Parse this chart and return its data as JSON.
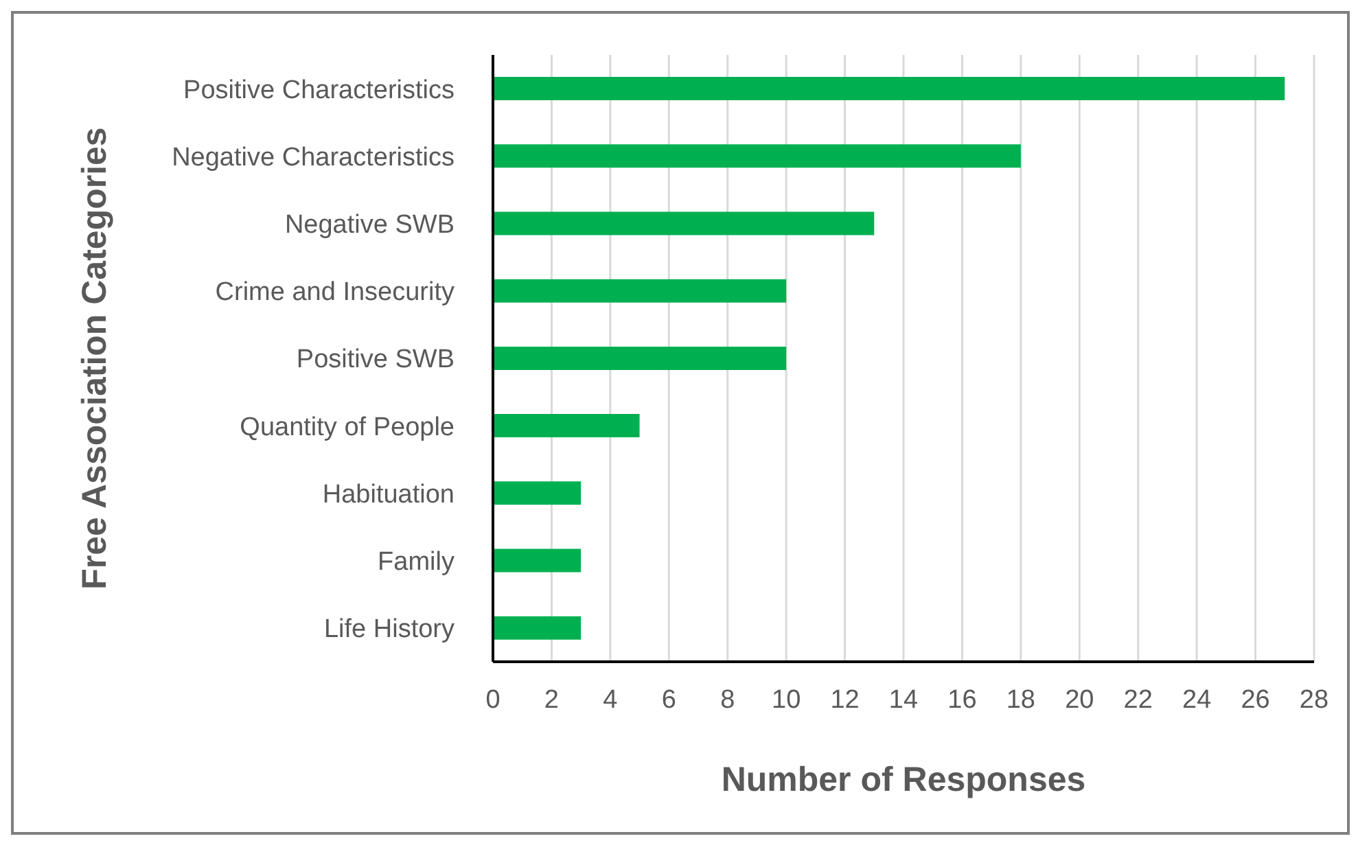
{
  "chart_data": {
    "type": "bar",
    "orientation": "horizontal",
    "xlabel": "Number of Responses",
    "ylabel": "Free Association Categories",
    "categories": [
      "Positive Characteristics",
      "Negative Characteristics",
      "Negative SWB",
      "Crime and Insecurity",
      "Positive SWB",
      "Quantity of People",
      "Habituation",
      "Family",
      "Life History"
    ],
    "values": [
      27,
      18,
      13,
      10,
      10,
      5,
      3,
      3,
      3
    ],
    "color": "#00b050",
    "xlim": [
      0,
      28
    ],
    "xticks": [
      0,
      2,
      4,
      6,
      8,
      10,
      12,
      14,
      16,
      18,
      20,
      22,
      24,
      26,
      28
    ],
    "grid": "x",
    "legend": false
  }
}
